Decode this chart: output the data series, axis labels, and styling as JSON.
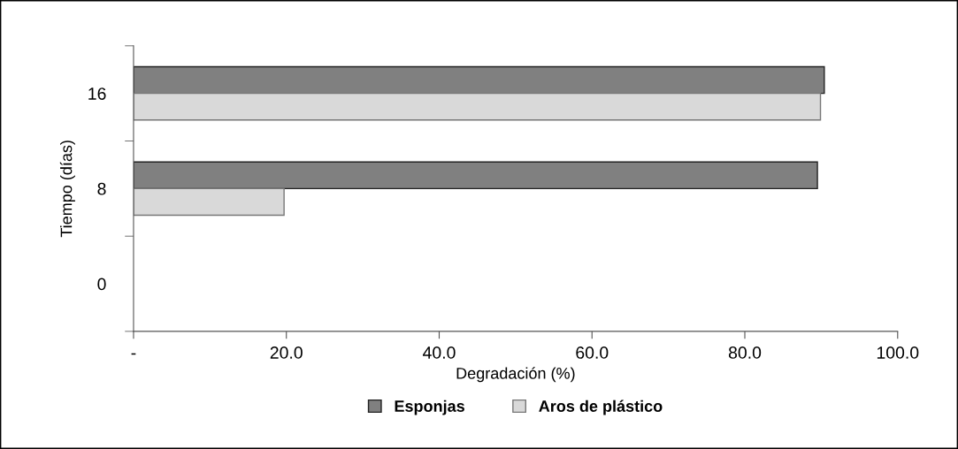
{
  "chart_data": {
    "type": "bar",
    "orientation": "horizontal",
    "xlabel": "Degradación (%)",
    "ylabel": "Tiempo (días)",
    "categories": [
      "16",
      "8",
      "0"
    ],
    "series": [
      {
        "name": "Esponjas",
        "color": "#808080",
        "values": [
          90.4,
          89.5,
          null
        ]
      },
      {
        "name": "Aros de plástico",
        "color": "#d9d9d9",
        "values": [
          89.9,
          19.7,
          null
        ]
      }
    ],
    "xlim": [
      0,
      100
    ],
    "xticks": [
      {
        "value": 0,
        "label": "-"
      },
      {
        "value": 20,
        "label": "20.0"
      },
      {
        "value": 40,
        "label": "40.0"
      },
      {
        "value": 60,
        "label": "60.0"
      },
      {
        "value": 80,
        "label": "80.0"
      },
      {
        "value": 100,
        "label": "100.0"
      }
    ],
    "grid": false,
    "legend": "bottom"
  }
}
